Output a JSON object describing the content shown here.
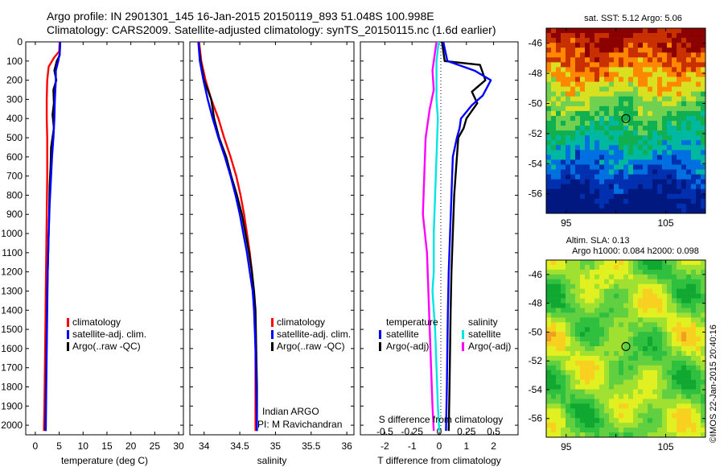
{
  "header": {
    "line1": "Argo profile: IN 2901301_145 16-Jan-2015 20150119_893 51.048S 100.998E",
    "line2": "Climatology: CARS2009. Satellite-adjusted climatology: synTS_20150115.nc (1.6d earlier)"
  },
  "colors": {
    "climatology": "#ff0000",
    "satellite": "#0000ff",
    "argo": "#000000",
    "sal_satellite": "#00e5e5",
    "sal_argo": "#ff00ff"
  },
  "chart_data": [
    {
      "id": "temp",
      "type": "line",
      "xlabel": "temperature (deg C)",
      "xlim": [
        -2,
        31
      ],
      "xticks": [
        0,
        5,
        10,
        15,
        20,
        25,
        30
      ],
      "ylim": [
        0,
        2050
      ],
      "yticks": [
        0,
        100,
        200,
        300,
        400,
        500,
        600,
        700,
        800,
        900,
        1000,
        1100,
        1200,
        1300,
        1400,
        1500,
        1600,
        1700,
        1800,
        1900,
        2000
      ],
      "legend": [
        "climatology",
        "satellite-adj. clim.",
        "Argo(..raw -QC)"
      ],
      "series": [
        {
          "name": "climatology",
          "color": "#ff0000",
          "points": [
            [
              5.1,
              0
            ],
            [
              5.0,
              50
            ],
            [
              4.0,
              80
            ],
            [
              2.8,
              130
            ],
            [
              2.5,
              200
            ],
            [
              2.4,
              300
            ],
            [
              2.4,
              400
            ],
            [
              2.5,
              500
            ],
            [
              2.5,
              700
            ],
            [
              2.4,
              900
            ],
            [
              2.3,
              1100
            ],
            [
              2.2,
              1300
            ],
            [
              2.1,
              1500
            ],
            [
              2.0,
              1700
            ],
            [
              1.9,
              1900
            ],
            [
              1.8,
              2030
            ]
          ]
        },
        {
          "name": "Argo(..raw -QC)",
          "color": "#000000",
          "points": [
            [
              5.2,
              0
            ],
            [
              5.1,
              70
            ],
            [
              4.5,
              100
            ],
            [
              4.0,
              150
            ],
            [
              4.4,
              200
            ],
            [
              3.8,
              250
            ],
            [
              3.9,
              320
            ],
            [
              3.6,
              380
            ],
            [
              3.9,
              450
            ],
            [
              3.3,
              550
            ],
            [
              3.2,
              650
            ],
            [
              3.0,
              750
            ],
            [
              2.9,
              900
            ],
            [
              2.7,
              1100
            ],
            [
              2.5,
              1300
            ],
            [
              2.4,
              1500
            ],
            [
              2.3,
              1700
            ],
            [
              2.2,
              1900
            ],
            [
              2.1,
              2030
            ]
          ]
        },
        {
          "name": "satellite-adj. clim.",
          "color": "#0000ff",
          "points": [
            [
              5.2,
              0
            ],
            [
              5.1,
              60
            ],
            [
              4.8,
              100
            ],
            [
              4.3,
              150
            ],
            [
              4.3,
              200
            ],
            [
              4.1,
              300
            ],
            [
              4.0,
              400
            ],
            [
              3.8,
              500
            ],
            [
              3.5,
              600
            ],
            [
              3.3,
              700
            ],
            [
              3.0,
              850
            ],
            [
              2.8,
              1000
            ],
            [
              2.6,
              1200
            ],
            [
              2.5,
              1400
            ],
            [
              2.4,
              1600
            ],
            [
              2.3,
              1800
            ],
            [
              2.2,
              2030
            ]
          ]
        }
      ]
    },
    {
      "id": "sal",
      "type": "line",
      "xlabel": "salinity",
      "xlim": [
        33.8,
        36.1
      ],
      "xticks": [
        34,
        34.5,
        35,
        35.5,
        36
      ],
      "ylim": [
        0,
        2050
      ],
      "yticks": [
        0,
        100,
        200,
        300,
        400,
        500,
        600,
        700,
        800,
        900,
        1000,
        1100,
        1200,
        1300,
        1400,
        1500,
        1600,
        1700,
        1800,
        1900,
        2000
      ],
      "legend": [
        "climatology",
        "satellite-adj. clim.",
        "Argo(..raw -QC)"
      ],
      "series": [
        {
          "name": "climatology",
          "color": "#ff0000",
          "points": [
            [
              33.93,
              0
            ],
            [
              33.96,
              100
            ],
            [
              34.02,
              200
            ],
            [
              34.1,
              300
            ],
            [
              34.2,
              400
            ],
            [
              34.28,
              500
            ],
            [
              34.37,
              600
            ],
            [
              34.45,
              700
            ],
            [
              34.51,
              800
            ],
            [
              34.56,
              900
            ],
            [
              34.6,
              1000
            ],
            [
              34.64,
              1100
            ],
            [
              34.67,
              1200
            ],
            [
              34.69,
              1300
            ],
            [
              34.71,
              1400
            ],
            [
              34.72,
              1600
            ],
            [
              34.72,
              1800
            ],
            [
              34.72,
              2030
            ]
          ]
        },
        {
          "name": "Argo(..raw -QC)",
          "color": "#000000",
          "points": [
            [
              33.92,
              0
            ],
            [
              33.95,
              100
            ],
            [
              34.0,
              200
            ],
            [
              34.05,
              250
            ],
            [
              34.1,
              300
            ],
            [
              34.14,
              400
            ],
            [
              34.21,
              500
            ],
            [
              34.31,
              600
            ],
            [
              34.38,
              700
            ],
            [
              34.46,
              800
            ],
            [
              34.53,
              900
            ],
            [
              34.58,
              1000
            ],
            [
              34.63,
              1100
            ],
            [
              34.67,
              1200
            ],
            [
              34.7,
              1300
            ],
            [
              34.72,
              1400
            ],
            [
              34.73,
              1600
            ],
            [
              34.74,
              1800
            ],
            [
              34.74,
              2030
            ]
          ]
        },
        {
          "name": "satellite-adj. clim.",
          "color": "#0000ff",
          "points": [
            [
              33.92,
              0
            ],
            [
              33.94,
              100
            ],
            [
              33.99,
              200
            ],
            [
              34.05,
              300
            ],
            [
              34.12,
              400
            ],
            [
              34.2,
              500
            ],
            [
              34.29,
              600
            ],
            [
              34.37,
              700
            ],
            [
              34.44,
              800
            ],
            [
              34.5,
              900
            ],
            [
              34.55,
              1000
            ],
            [
              34.6,
              1100
            ],
            [
              34.64,
              1200
            ],
            [
              34.68,
              1300
            ],
            [
              34.7,
              1400
            ],
            [
              34.72,
              1600
            ],
            [
              34.73,
              1800
            ],
            [
              34.74,
              2030
            ]
          ]
        }
      ],
      "annotation": [
        "Indian ARGO",
        "PI: M Ravichandran"
      ]
    },
    {
      "id": "diff",
      "type": "line",
      "xlabel": "T difference from climatology",
      "xlabel_top": "S difference from climatology",
      "xlim": [
        -2.9,
        2.9
      ],
      "xticks": [
        -2,
        -1,
        0,
        1,
        2
      ],
      "xticks_sal": [
        "-0.5",
        "-0.25",
        "0",
        "0.25",
        "0.5"
      ],
      "ylim": [
        0,
        2050
      ],
      "legend_temp_title": "temperature",
      "legend_sal_title": "salinity",
      "legend": [
        "satellite",
        "Argo(-adj)",
        "satellite",
        "Argo(-adj)"
      ],
      "series": [
        {
          "name": "satellite",
          "color": "#00e5e5",
          "points": [
            [
              -0.02,
              0
            ],
            [
              -0.1,
              100
            ],
            [
              -0.1,
              300
            ],
            [
              -0.05,
              400
            ],
            [
              -0.1,
              600
            ],
            [
              -0.15,
              800
            ],
            [
              -0.2,
              1000
            ],
            [
              -0.2,
              1200
            ],
            [
              -0.25,
              1300
            ],
            [
              -0.15,
              1500
            ],
            [
              -0.1,
              1700
            ],
            [
              -0.05,
              1900
            ],
            [
              0.0,
              2030
            ]
          ]
        },
        {
          "name": "Argo(-adj)",
          "color": "#ff00ff",
          "points": [
            [
              -0.1,
              0
            ],
            [
              -0.15,
              50
            ],
            [
              -0.25,
              150
            ],
            [
              -0.2,
              250
            ],
            [
              -0.35,
              350
            ],
            [
              -0.5,
              500
            ],
            [
              -0.55,
              700
            ],
            [
              -0.6,
              900
            ],
            [
              -0.45,
              1100
            ],
            [
              -0.4,
              1300
            ],
            [
              -0.35,
              1500
            ],
            [
              -0.3,
              1700
            ],
            [
              -0.25,
              1900
            ],
            [
              -0.2,
              2030
            ]
          ]
        },
        {
          "name": "Argo(-adj)",
          "color": "#000000",
          "points": [
            [
              0.1,
              0
            ],
            [
              0.2,
              100
            ],
            [
              1.5,
              120
            ],
            [
              1.7,
              200
            ],
            [
              1.2,
              260
            ],
            [
              1.4,
              320
            ],
            [
              1.0,
              400
            ],
            [
              0.9,
              450
            ],
            [
              0.7,
              500
            ],
            [
              0.65,
              600
            ],
            [
              0.6,
              700
            ],
            [
              0.55,
              800
            ],
            [
              0.5,
              1000
            ],
            [
              0.45,
              1200
            ],
            [
              0.42,
              1400
            ],
            [
              0.4,
              1600
            ],
            [
              0.38,
              1800
            ],
            [
              0.35,
              2030
            ]
          ]
        },
        {
          "name": "satellite",
          "color": "#0000ff",
          "points": [
            [
              0.15,
              0
            ],
            [
              0.3,
              100
            ],
            [
              1.3,
              150
            ],
            [
              1.9,
              200
            ],
            [
              1.6,
              280
            ],
            [
              1.2,
              330
            ],
            [
              0.8,
              400
            ],
            [
              0.75,
              450
            ],
            [
              0.65,
              500
            ],
            [
              0.5,
              600
            ],
            [
              0.45,
              800
            ],
            [
              0.4,
              1000
            ],
            [
              0.35,
              1200
            ],
            [
              0.32,
              1400
            ],
            [
              0.3,
              1600
            ],
            [
              0.28,
              1800
            ],
            [
              0.25,
              2030
            ]
          ]
        }
      ]
    },
    {
      "id": "sst",
      "type": "heatmap",
      "title": "sat. SST: 5.12  Argo: 5.06",
      "xticks": [
        95,
        100,
        105
      ],
      "xticklabels": [
        "95",
        "",
        "105"
      ],
      "yticks": [
        -46,
        -48,
        -50,
        -52,
        -54,
        -56
      ],
      "xlim": [
        93,
        109
      ],
      "ylim": [
        -57.3,
        -45.0
      ],
      "marker": [
        101,
        -51
      ],
      "bands": [
        "#8b0000",
        "#c83000",
        "#ff8800",
        "#d8e020",
        "#70d050",
        "#10b050",
        "#00b8a0",
        "#0070e0",
        "#0030b0",
        "#001880"
      ]
    },
    {
      "id": "sla",
      "type": "heatmap",
      "title": "Altim. SLA: 0.13",
      "subtitle": "Argo h1000: 0.084  h2000: 0.098",
      "xticks": [
        95,
        100,
        105
      ],
      "xticklabels": [
        "95",
        "",
        "105"
      ],
      "yticks": [
        -46,
        -48,
        -50,
        -52,
        -54,
        -56
      ],
      "xlim": [
        93,
        109
      ],
      "ylim": [
        -57.3,
        -45.0
      ],
      "marker": [
        101,
        -51
      ],
      "side_text": "©IMOS 22-Jan-2015 20:40:16"
    }
  ]
}
